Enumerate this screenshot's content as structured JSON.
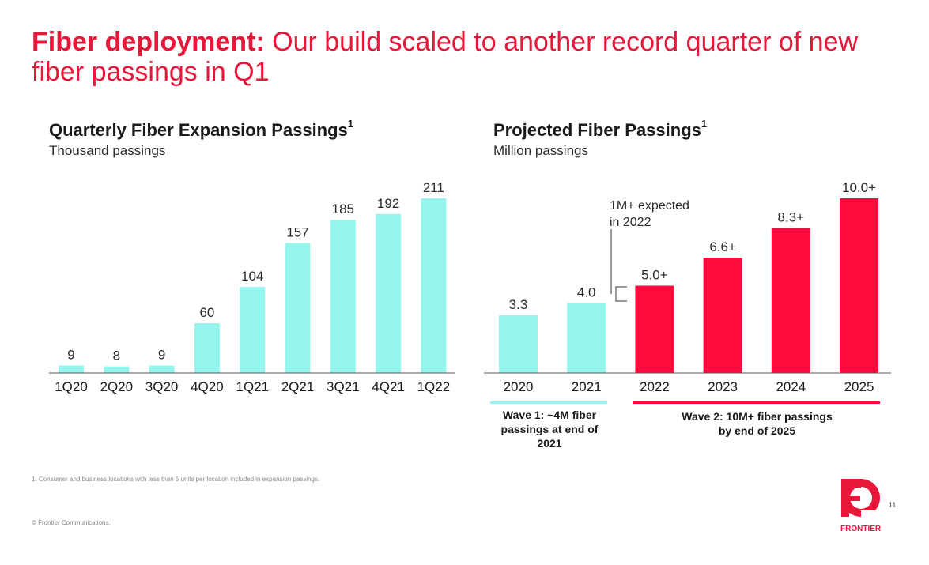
{
  "slide": {
    "title_bold": "Fiber deployment:",
    "title_rest": " Our build scaled to another record quarter of new fiber passings in Q1",
    "footnote": "1. Consumer and business locations with less than 5 units per location included in expansion passings.",
    "copyright": "© Frontier Communications.",
    "page_number": "11",
    "brand": "FRONTIER",
    "colors": {
      "accent": "#e8173a",
      "bar_light": "#94f5ee",
      "bar_red": "#ff0a3c"
    }
  },
  "left_chart": {
    "title": "Quarterly Fiber Expansion Passings",
    "title_sup": "1",
    "subtitle": "Thousand passings"
  },
  "right_chart": {
    "title": "Projected Fiber Passings",
    "title_sup": "1",
    "subtitle": "Million passings",
    "callout_line1": "1M+ expected",
    "callout_line2": "in 2022",
    "wave1": "Wave 1: ~4M fiber passings at end of 2021",
    "wave2": "Wave 2: 10M+ fiber passings by end of 2025"
  },
  "chart_data": [
    {
      "type": "bar",
      "title": "Quarterly Fiber Expansion Passings",
      "ylabel": "Thousand passings",
      "categories": [
        "1Q20",
        "2Q20",
        "3Q20",
        "4Q20",
        "1Q21",
        "2Q21",
        "3Q21",
        "4Q21",
        "1Q22"
      ],
      "values": [
        9,
        8,
        9,
        60,
        104,
        157,
        185,
        192,
        211
      ],
      "labels": [
        "9",
        "8",
        "9",
        "60",
        "104",
        "157",
        "185",
        "192",
        "211"
      ],
      "ylim": [
        0,
        211
      ],
      "grid": false
    },
    {
      "type": "bar",
      "title": "Projected Fiber Passings",
      "ylabel": "Million passings",
      "categories": [
        "2020",
        "2021",
        "2022",
        "2023",
        "2024",
        "2025"
      ],
      "values": [
        3.3,
        4.0,
        5.0,
        6.6,
        8.3,
        10.0
      ],
      "labels": [
        "3.3",
        "4.0",
        "5.0+",
        "6.6+",
        "8.3+",
        "10.0+"
      ],
      "bar_colors": [
        "#94f5ee",
        "#94f5ee",
        "#ff0a3c",
        "#ff0a3c",
        "#ff0a3c",
        "#ff0a3c"
      ],
      "ylim": [
        0,
        10.0
      ],
      "grid": false
    }
  ]
}
